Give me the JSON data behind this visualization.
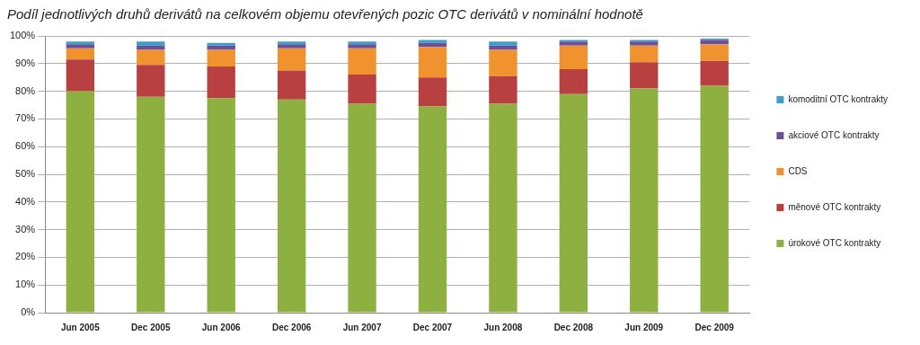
{
  "chart_data": {
    "type": "bar",
    "title": "Podíl jednotlivých druhů derivátů na celkovém objemu otevřených pozic OTC derivátů v nominální hodnotě",
    "categories": [
      "Jun 2005",
      "Dec 2005",
      "Jun 2006",
      "Dec 2006",
      "Jun 2007",
      "Dec 2007",
      "Jun 2008",
      "Dec 2008",
      "Jun 2009",
      "Dec 2009"
    ],
    "stacked": true,
    "legend": "right",
    "grid": "y",
    "ylim": [
      0,
      100
    ],
    "yticks": [
      {
        "value": 0,
        "label": "0%"
      },
      {
        "value": 10,
        "label": "10%"
      },
      {
        "value": 20,
        "label": "20%"
      },
      {
        "value": 30,
        "label": "30%"
      },
      {
        "value": 40,
        "label": "40%"
      },
      {
        "value": 50,
        "label": "50%"
      },
      {
        "value": 60,
        "label": "60%"
      },
      {
        "value": 70,
        "label": "70%"
      },
      {
        "value": 80,
        "label": "80%"
      },
      {
        "value": 90,
        "label": "90%"
      },
      {
        "value": 100,
        "label": "100%"
      }
    ],
    "series": [
      {
        "name": "úrokové OTC kontrakty",
        "color": "#8db040",
        "values": [
          80,
          78,
          77.5,
          77,
          75.5,
          74.5,
          75.5,
          79,
          81,
          82
        ]
      },
      {
        "name": "měnové OTC kontrakty",
        "color": "#b84040",
        "values": [
          11.5,
          11.5,
          11.5,
          10.5,
          10.5,
          10.5,
          10,
          9,
          9.5,
          9
        ]
      },
      {
        "name": "CDS",
        "color": "#f0922e",
        "values": [
          4,
          5.5,
          6,
          8,
          9.5,
          11,
          9.5,
          8.5,
          6,
          6
        ]
      },
      {
        "name": "akciové OTC kontrakty",
        "color": "#6b4f9b",
        "values": [
          1.5,
          1.5,
          1.5,
          1.5,
          1.5,
          1.5,
          1.5,
          1.5,
          1.5,
          1.5
        ]
      },
      {
        "name": "komoditní OTC kontrakty",
        "color": "#3aa0c8",
        "values": [
          1,
          1.5,
          1,
          1,
          1,
          1,
          1.5,
          0.5,
          0.5,
          0.5
        ]
      }
    ]
  }
}
